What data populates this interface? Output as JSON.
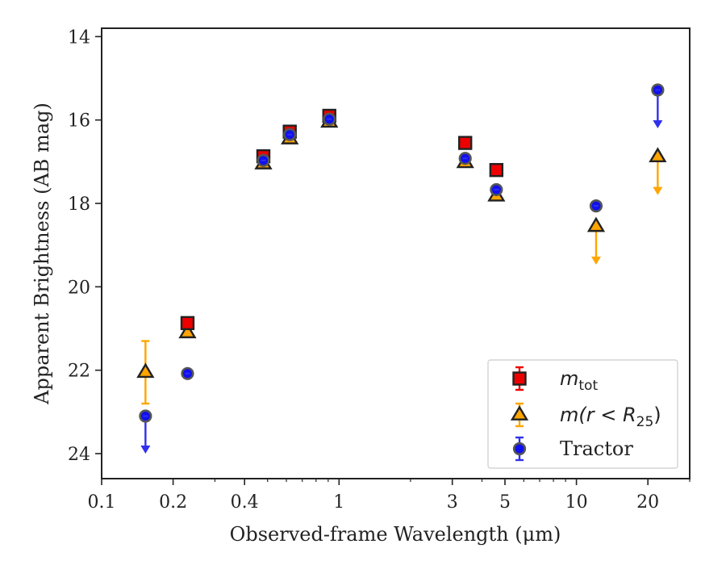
{
  "chart_data": {
    "type": "scatter",
    "title": "",
    "xlabel": "Observed-frame Wavelength (μm)",
    "ylabel": "Apparent Brightness (AB mag)",
    "xscale": "log",
    "xlim": [
      0.1,
      30
    ],
    "ylim": [
      24.6,
      13.8
    ],
    "y_inverted": true,
    "grid": false,
    "legend_position": "bottom-right",
    "x_ticks": [
      0.1,
      0.2,
      0.4,
      1,
      3,
      5,
      10,
      20
    ],
    "x_tick_labels": [
      "0.1",
      "0.2",
      "0.4",
      "1",
      "3",
      "5",
      "10",
      "20"
    ],
    "y_ticks": [
      14,
      16,
      18,
      20,
      22,
      24
    ],
    "y_tick_labels": [
      "14",
      "16",
      "18",
      "20",
      "22",
      "24"
    ],
    "series": [
      {
        "name": "m_tot",
        "legend_label": "m",
        "legend_sub": "tot",
        "marker": "square",
        "color": "#ee0000",
        "edge_color": "#222222",
        "points": [
          {
            "x": 0.23,
            "y": 20.87,
            "err": 0.05
          },
          {
            "x": 0.48,
            "y": 16.87,
            "err": 0.05
          },
          {
            "x": 0.62,
            "y": 16.28,
            "err": 0.05
          },
          {
            "x": 0.91,
            "y": 15.9,
            "err": 0.05
          },
          {
            "x": 3.4,
            "y": 16.55,
            "err": 0.05
          },
          {
            "x": 4.6,
            "y": 17.2,
            "err": 0.05
          }
        ]
      },
      {
        "name": "m(r < R25)",
        "legend_label": "m(r < R",
        "legend_sub": "25",
        "legend_tail": ")",
        "marker": "triangle",
        "color": "#ffa500",
        "edge_color": "#222222",
        "points": [
          {
            "x": 0.153,
            "y": 22.05,
            "err": 0.75
          },
          {
            "x": 0.23,
            "y": 21.1,
            "err": 0.05
          },
          {
            "x": 0.48,
            "y": 17.05,
            "err": 0.05
          },
          {
            "x": 0.62,
            "y": 16.45,
            "err": 0.05
          },
          {
            "x": 0.91,
            "y": 16.05,
            "err": 0.05
          },
          {
            "x": 3.4,
            "y": 17.02,
            "err": 0.05
          },
          {
            "x": 4.6,
            "y": 17.82,
            "err": 0.05
          },
          {
            "x": 12.1,
            "y": 18.55,
            "upper_limit_to": 19.45
          },
          {
            "x": 22.0,
            "y": 16.88,
            "upper_limit_to": 17.78
          }
        ]
      },
      {
        "name": "Tractor",
        "legend_label": "Tractor",
        "marker": "circle",
        "color": "#1010ee",
        "edge_color": "#555555",
        "points": [
          {
            "x": 0.153,
            "y": 23.1,
            "upper_limit_to": 23.98
          },
          {
            "x": 0.23,
            "y": 22.08,
            "err": 0.05
          },
          {
            "x": 0.48,
            "y": 16.97,
            "err": 0.05
          },
          {
            "x": 0.62,
            "y": 16.35,
            "err": 0.05
          },
          {
            "x": 0.91,
            "y": 15.98,
            "err": 0.05
          },
          {
            "x": 3.4,
            "y": 16.92,
            "err": 0.05
          },
          {
            "x": 4.6,
            "y": 17.67,
            "err": 0.05
          },
          {
            "x": 12.1,
            "y": 18.06,
            "err": 0.05
          },
          {
            "x": 22.0,
            "y": 15.28,
            "upper_limit_to": 16.18
          }
        ]
      }
    ]
  }
}
